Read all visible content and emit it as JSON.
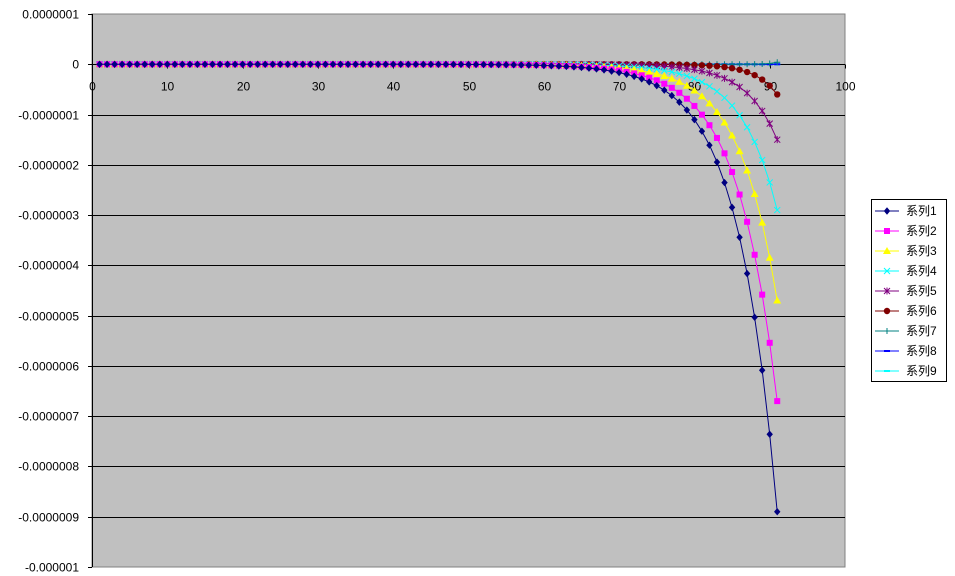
{
  "chart_data": {
    "type": "line",
    "title": "",
    "xlabel": "",
    "ylabel": "",
    "xlim": [
      0,
      100
    ],
    "ylim": [
      -1e-06,
      1e-07
    ],
    "x_ticks": [
      "0",
      "10",
      "20",
      "30",
      "40",
      "50",
      "60",
      "70",
      "80",
      "90",
      "100"
    ],
    "y_ticks": [
      "0.0000001",
      "0",
      "-0.0000001",
      "-0.0000002",
      "-0.0000003",
      "-0.0000004",
      "-0.0000005",
      "-0.0000006",
      "-0.0000007",
      "-0.0000008",
      "-0.0000009",
      "-0.000001"
    ],
    "grid": "horizontal",
    "legend_position": "right",
    "plot_background": "#c0c0c0",
    "series": [
      {
        "name": "系列1",
        "color": "#000080",
        "marker": "diamond",
        "x_start": 1,
        "x_end": 91,
        "decay": 0.19,
        "end_value": -8.9e-07
      },
      {
        "name": "系列2",
        "color": "#ff00ff",
        "marker": "square",
        "x_start": 1,
        "x_end": 91,
        "decay": 0.19,
        "end_value": -6.7e-07
      },
      {
        "name": "系列3",
        "color": "#ffff00",
        "marker": "triangle",
        "x_start": 1,
        "x_end": 91,
        "decay": 0.2,
        "end_value": -4.7e-07
      },
      {
        "name": "系列4",
        "color": "#00ffff",
        "marker": "x",
        "x_start": 1,
        "x_end": 91,
        "decay": 0.21,
        "end_value": -2.9e-07
      },
      {
        "name": "系列5",
        "color": "#800080",
        "marker": "star",
        "x_start": 1,
        "x_end": 91,
        "decay": 0.24,
        "end_value": -1.5e-07
      },
      {
        "name": "系列6",
        "color": "#800000",
        "marker": "circle",
        "x_start": 1,
        "x_end": 91,
        "decay": 0.34,
        "end_value": -6e-08
      },
      {
        "name": "系列7",
        "color": "#008080",
        "marker": "plus",
        "x_start": 1,
        "x_end": 91,
        "decay": 0.9,
        "end_value": 4e-09
      },
      {
        "name": "系列8",
        "color": "#0000ff",
        "marker": "dash",
        "x_start": 1,
        "x_end": 91,
        "decay": 0.9,
        "end_value": 0
      },
      {
        "name": "系列9",
        "color": "#00ffff",
        "marker": "dash",
        "x_start": 1,
        "x_end": 91,
        "decay": 0.9,
        "end_value": 0
      }
    ]
  }
}
